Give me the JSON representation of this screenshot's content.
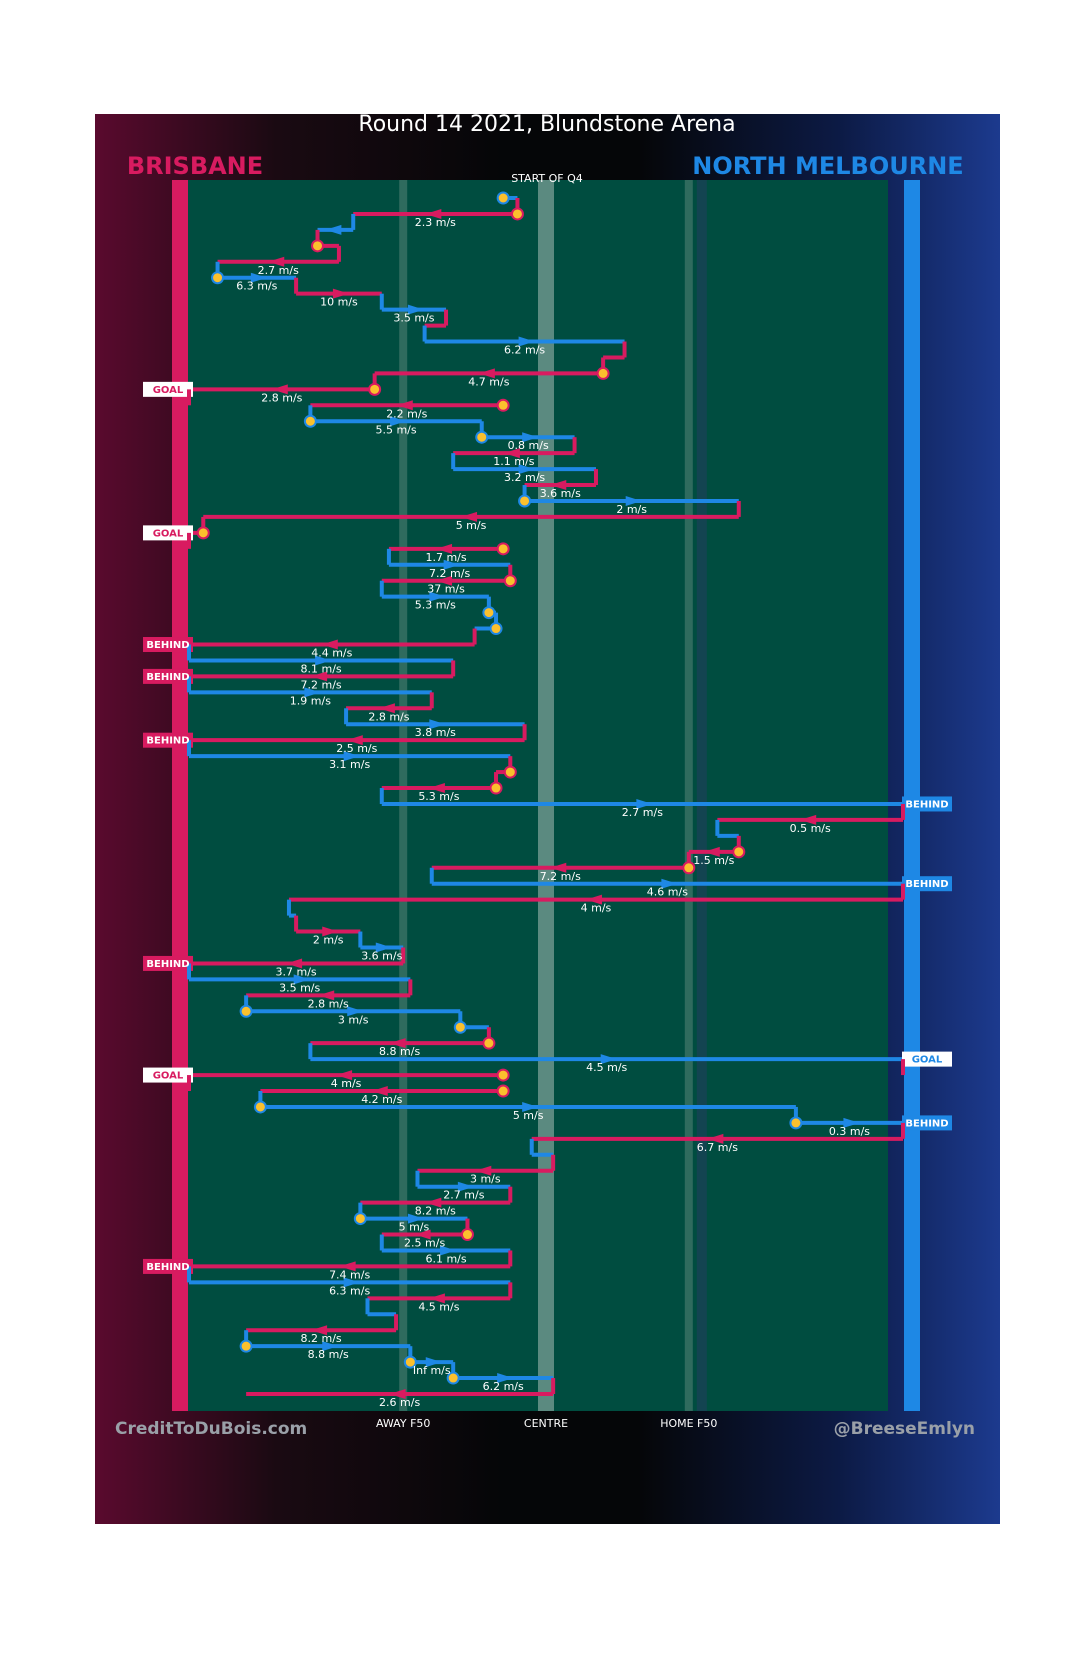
{
  "colors": {
    "brisbane": "#d81b60",
    "north": "#1e88e5",
    "field": "#004d40",
    "ball": "#fbc02d"
  },
  "chart_data": {
    "type": "line",
    "title": "Round 14 2021, Blundstone Arena",
    "teams": {
      "left": "BRISBANE",
      "right": "NORTH MELBOURNE"
    },
    "start_label": "START OF Q4",
    "x_ticks": [
      "AWAY F50",
      "CENTRE",
      "HOME F50"
    ],
    "credits": {
      "left": "CreditToDuBois.com",
      "right": "@BreeseEmlyn"
    },
    "segments": [
      {
        "team": "N",
        "x0": 0.44,
        "x1": 0.46,
        "label": "",
        "start": true
      },
      {
        "team": "B",
        "x0": 0.46,
        "x1": 0.23,
        "label": "2.3 m/s",
        "ball": true
      },
      {
        "team": "N",
        "x0": 0.23,
        "x1": 0.18,
        "label": ""
      },
      {
        "team": "B",
        "x0": 0.18,
        "x1": 0.21,
        "label": "",
        "ball": true
      },
      {
        "team": "B",
        "x0": 0.21,
        "x1": 0.04,
        "label": "2.7 m/s"
      },
      {
        "team": "N",
        "x0": 0.04,
        "x1": 0.15,
        "label": "6.3 m/s",
        "ball": true
      },
      {
        "team": "B",
        "x0": 0.15,
        "x1": 0.27,
        "label": "10 m/s"
      },
      {
        "team": "N",
        "x0": 0.27,
        "x1": 0.36,
        "label": "3.5 m/s"
      },
      {
        "team": "B",
        "x0": 0.36,
        "x1": 0.33,
        "label": ""
      },
      {
        "team": "N",
        "x0": 0.33,
        "x1": 0.61,
        "label": "6.2 m/s"
      },
      {
        "team": "B",
        "x0": 0.61,
        "x1": 0.58,
        "label": ""
      },
      {
        "team": "B",
        "x0": 0.58,
        "x1": 0.26,
        "label": "4.7 m/s",
        "ball": true
      },
      {
        "team": "B",
        "x0": 0.26,
        "x1": 0.0,
        "label": "2.8 m/s",
        "ball": true,
        "outcome": "GOAL"
      },
      {
        "team": "B",
        "x0": 0.44,
        "x1": 0.17,
        "label": "2.2 m/s",
        "ball": true
      },
      {
        "team": "N",
        "x0": 0.17,
        "x1": 0.41,
        "label": "5.5 m/s",
        "ball": true
      },
      {
        "team": "N",
        "x0": 0.41,
        "x1": 0.54,
        "label": "0.8 m/s",
        "ball": true
      },
      {
        "team": "B",
        "x0": 0.54,
        "x1": 0.37,
        "label": "1.1 m/s"
      },
      {
        "team": "N",
        "x0": 0.37,
        "x1": 0.57,
        "label": "3.2 m/s"
      },
      {
        "team": "B",
        "x0": 0.57,
        "x1": 0.47,
        "label": "3.6 m/s"
      },
      {
        "team": "N",
        "x0": 0.47,
        "x1": 0.77,
        "label": "2 m/s",
        "ball": true
      },
      {
        "team": "B",
        "x0": 0.77,
        "x1": 0.02,
        "label": "5 m/s"
      },
      {
        "team": "B",
        "x0": 0.02,
        "x1": 0.0,
        "label": "",
        "ball": true,
        "outcome": "GOAL"
      },
      {
        "team": "B",
        "x0": 0.44,
        "x1": 0.28,
        "label": "1.7 m/s",
        "ball": true
      },
      {
        "team": "N",
        "x0": 0.28,
        "x1": 0.45,
        "label": "7.2 m/s"
      },
      {
        "team": "B",
        "x0": 0.45,
        "x1": 0.27,
        "label": "37 m/s",
        "ball": true
      },
      {
        "team": "N",
        "x0": 0.27,
        "x1": 0.42,
        "label": "5.3 m/s"
      },
      {
        "team": "N",
        "x0": 0.42,
        "x1": 0.43,
        "label": "",
        "ball": true
      },
      {
        "team": "N",
        "x0": 0.43,
        "x1": 0.4,
        "label": "",
        "ball": true
      },
      {
        "team": "B",
        "x0": 0.4,
        "x1": 0.0,
        "label": "4.4 m/s",
        "outcome": "BEHIND"
      },
      {
        "team": "N",
        "x0": 0.0,
        "x1": 0.37,
        "label": "8.1 m/s"
      },
      {
        "team": "B",
        "x0": 0.37,
        "x1": 0.0,
        "label": "7.2 m/s",
        "outcome": "BEHIND"
      },
      {
        "team": "N",
        "x0": 0.0,
        "x1": 0.34,
        "label": "1.9 m/s"
      },
      {
        "team": "B",
        "x0": 0.34,
        "x1": 0.22,
        "label": "2.8 m/s"
      },
      {
        "team": "N",
        "x0": 0.22,
        "x1": 0.47,
        "label": "3.8 m/s"
      },
      {
        "team": "B",
        "x0": 0.47,
        "x1": 0.0,
        "label": "2.5 m/s",
        "outcome": "BEHIND"
      },
      {
        "team": "N",
        "x0": 0.0,
        "x1": 0.45,
        "label": "3.1 m/s"
      },
      {
        "team": "B",
        "x0": 0.45,
        "x1": 0.43,
        "label": "",
        "ball": true
      },
      {
        "team": "B",
        "x0": 0.43,
        "x1": 0.27,
        "label": "5.3 m/s",
        "ball": true
      },
      {
        "team": "N",
        "x0": 0.27,
        "x1": 1.0,
        "label": "2.7 m/s",
        "outcome": "BEHIND"
      },
      {
        "team": "B",
        "x0": 1.0,
        "x1": 0.74,
        "label": "0.5 m/s"
      },
      {
        "team": "N",
        "x0": 0.74,
        "x1": 0.77,
        "label": ""
      },
      {
        "team": "B",
        "x0": 0.77,
        "x1": 0.7,
        "label": "1.5 m/s",
        "ball": true
      },
      {
        "team": "B",
        "x0": 0.7,
        "x1": 0.34,
        "label": "7.2 m/s",
        "ball": true
      },
      {
        "team": "N",
        "x0": 0.34,
        "x1": 1.0,
        "label": "4.6 m/s",
        "outcome": "BEHIND"
      },
      {
        "team": "B",
        "x0": 1.0,
        "x1": 0.14,
        "label": "4 m/s"
      },
      {
        "team": "N",
        "x0": 0.14,
        "x1": 0.15,
        "label": ""
      },
      {
        "team": "B",
        "x0": 0.15,
        "x1": 0.24,
        "label": "2 m/s"
      },
      {
        "team": "N",
        "x0": 0.24,
        "x1": 0.3,
        "label": "3.6 m/s"
      },
      {
        "team": "B",
        "x0": 0.3,
        "x1": 0.0,
        "label": "3.7 m/s",
        "outcome": "BEHIND"
      },
      {
        "team": "N",
        "x0": 0.0,
        "x1": 0.31,
        "label": "3.5 m/s"
      },
      {
        "team": "B",
        "x0": 0.31,
        "x1": 0.08,
        "label": "2.8 m/s"
      },
      {
        "team": "N",
        "x0": 0.08,
        "x1": 0.38,
        "label": "3 m/s",
        "ball": true
      },
      {
        "team": "N",
        "x0": 0.38,
        "x1": 0.42,
        "label": "",
        "ball": true
      },
      {
        "team": "B",
        "x0": 0.42,
        "x1": 0.17,
        "label": "8.8 m/s",
        "ball": true
      },
      {
        "team": "N",
        "x0": 0.17,
        "x1": 1.0,
        "label": "4.5 m/s",
        "outcome": "GOAL"
      },
      {
        "team": "B",
        "x0": 0.44,
        "x1": 0.0,
        "label": "4 m/s",
        "ball": true,
        "outcome": "GOAL"
      },
      {
        "team": "B",
        "x0": 0.44,
        "x1": 0.1,
        "label": "4.2 m/s",
        "ball": true
      },
      {
        "team": "N",
        "x0": 0.1,
        "x1": 0.85,
        "label": "5 m/s",
        "ball": true
      },
      {
        "team": "N",
        "x0": 0.85,
        "x1": 1.0,
        "label": "0.3 m/s",
        "ball": true,
        "outcome": "BEHIND"
      },
      {
        "team": "B",
        "x0": 1.0,
        "x1": 0.48,
        "label": "6.7 m/s"
      },
      {
        "team": "N",
        "x0": 0.48,
        "x1": 0.51,
        "label": ""
      },
      {
        "team": "B",
        "x0": 0.51,
        "x1": 0.32,
        "label": "3 m/s"
      },
      {
        "team": "N",
        "x0": 0.32,
        "x1": 0.45,
        "label": "2.7 m/s"
      },
      {
        "team": "B",
        "x0": 0.45,
        "x1": 0.24,
        "label": "8.2 m/s"
      },
      {
        "team": "N",
        "x0": 0.24,
        "x1": 0.39,
        "label": "5 m/s",
        "ball": true
      },
      {
        "team": "B",
        "x0": 0.39,
        "x1": 0.27,
        "label": "2.5 m/s",
        "ball": true
      },
      {
        "team": "N",
        "x0": 0.27,
        "x1": 0.45,
        "label": "6.1 m/s"
      },
      {
        "team": "B",
        "x0": 0.45,
        "x1": 0.0,
        "label": "7.4 m/s",
        "outcome": "BEHIND"
      },
      {
        "team": "N",
        "x0": 0.0,
        "x1": 0.45,
        "label": "6.3 m/s"
      },
      {
        "team": "B",
        "x0": 0.45,
        "x1": 0.25,
        "label": "4.5 m/s"
      },
      {
        "team": "N",
        "x0": 0.25,
        "x1": 0.29,
        "label": ""
      },
      {
        "team": "B",
        "x0": 0.29,
        "x1": 0.08,
        "label": "8.2 m/s"
      },
      {
        "team": "N",
        "x0": 0.08,
        "x1": 0.31,
        "label": "8.8 m/s",
        "ball": true
      },
      {
        "team": "N",
        "x0": 0.31,
        "x1": 0.37,
        "label": "Inf m/s",
        "ball": true
      },
      {
        "team": "N",
        "x0": 0.37,
        "x1": 0.51,
        "label": "6.2 m/s",
        "ball": true
      },
      {
        "team": "B",
        "x0": 0.51,
        "x1": 0.08,
        "label": "2.6 m/s"
      }
    ]
  }
}
